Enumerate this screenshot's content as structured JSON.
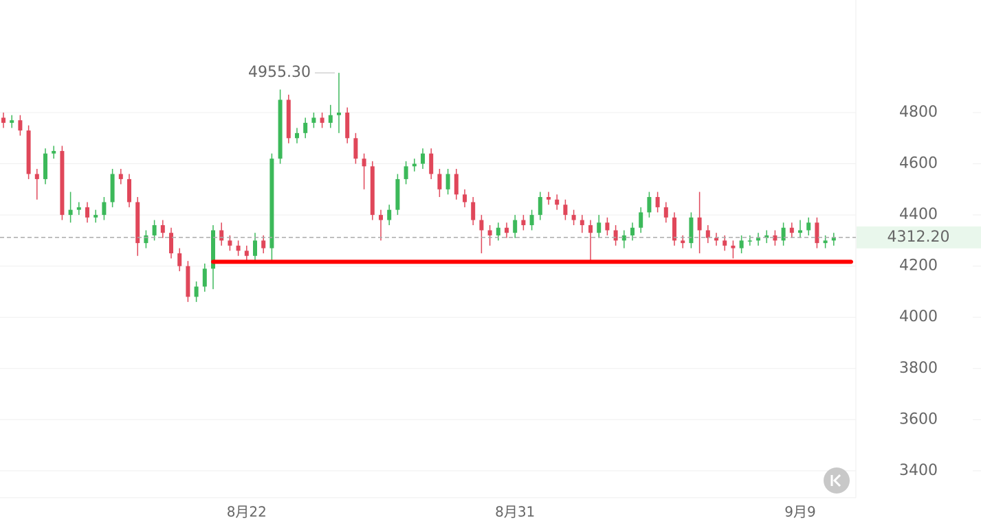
{
  "chart_data": {
    "type": "candlestick",
    "ylim": [
      3295,
      5240
    ],
    "yticks": [
      3400,
      3600,
      3800,
      4000,
      4200,
      4400,
      4600,
      4800
    ],
    "grid": true,
    "up_color": "#3cb95a",
    "down_color": "#e0475a",
    "categories": [
      null,
      null,
      null,
      null,
      null,
      null,
      null,
      null,
      null,
      null,
      null,
      null,
      null,
      null,
      null,
      null,
      null,
      null,
      null,
      null,
      null,
      null,
      null,
      null,
      null,
      null,
      null,
      null,
      null,
      "8月22",
      null,
      null,
      null,
      null,
      null,
      null,
      null,
      null,
      null,
      null,
      null,
      null,
      null,
      null,
      null,
      null,
      null,
      null,
      null,
      null,
      null,
      null,
      null,
      null,
      null,
      null,
      null,
      null,
      null,
      null,
      null,
      "8月31",
      null,
      null,
      null,
      null,
      null,
      null,
      null,
      null,
      null,
      null,
      null,
      null,
      null,
      null,
      null,
      null,
      null,
      null,
      null,
      null,
      null,
      null,
      null,
      null,
      null,
      null,
      null,
      null,
      null,
      null,
      null,
      null,
      null,
      "9月9",
      null,
      null,
      null,
      null
    ],
    "open": [
      4780,
      4760,
      4770,
      4730,
      4560,
      4540,
      4640,
      4650,
      4400,
      4420,
      4430,
      4390,
      4400,
      4450,
      4560,
      4540,
      4450,
      4290,
      4320,
      4360,
      4330,
      4250,
      4200,
      4080,
      4120,
      4190,
      4340,
      4300,
      4280,
      4260,
      4240,
      4300,
      4270,
      4620,
      4850,
      4700,
      4720,
      4760,
      4780,
      4760,
      4790,
      4800,
      4700,
      4620,
      4590,
      4400,
      4380,
      4420,
      4540,
      4590,
      4600,
      4640,
      4560,
      4500,
      4560,
      4480,
      4450,
      4380,
      4340,
      4320,
      4350,
      4330,
      4380,
      4360,
      4400,
      4470,
      4460,
      4440,
      4400,
      4380,
      4360,
      4330,
      4370,
      4340,
      4300,
      4320,
      4350,
      4410,
      4470,
      4430,
      4390,
      4300,
      4290,
      4390,
      4340,
      4310,
      4300,
      4280,
      4270,
      4300,
      4300,
      4310,
      4320,
      4300,
      4350,
      4330,
      4340,
      4370,
      4290,
      4300
    ],
    "high": [
      4800,
      4790,
      4790,
      4750,
      4580,
      4660,
      4670,
      4670,
      4490,
      4450,
      4450,
      4420,
      4470,
      4580,
      4580,
      4560,
      4470,
      4340,
      4380,
      4380,
      4350,
      4270,
      4220,
      4140,
      4210,
      4360,
      4370,
      4320,
      4300,
      4280,
      4330,
      4320,
      4640,
      4890,
      4870,
      4740,
      4780,
      4800,
      4800,
      4830,
      4955.3,
      4820,
      4720,
      4640,
      4610,
      4420,
      4440,
      4560,
      4610,
      4620,
      4660,
      4660,
      4580,
      4580,
      4580,
      4500,
      4470,
      4400,
      4360,
      4370,
      4370,
      4400,
      4400,
      4420,
      4490,
      4490,
      4480,
      4460,
      4420,
      4400,
      4380,
      4400,
      4390,
      4360,
      4340,
      4370,
      4430,
      4490,
      4490,
      4450,
      4410,
      4320,
      4410,
      4490,
      4360,
      4330,
      4320,
      4300,
      4320,
      4320,
      4330,
      4340,
      4340,
      4370,
      4370,
      4380,
      4390,
      4390,
      4320,
      4330
    ],
    "low": [
      4740,
      4740,
      4710,
      4540,
      4460,
      4520,
      4620,
      4380,
      4370,
      4400,
      4370,
      4370,
      4380,
      4430,
      4520,
      4430,
      4240,
      4270,
      4300,
      4310,
      4230,
      4180,
      4060,
      4060,
      4100,
      4110,
      4280,
      4260,
      4240,
      4220,
      4220,
      4250,
      4220,
      4600,
      4680,
      4680,
      4700,
      4740,
      4740,
      4740,
      4720,
      4680,
      4600,
      4500,
      4380,
      4300,
      4360,
      4400,
      4520,
      4570,
      4580,
      4540,
      4470,
      4480,
      4460,
      4430,
      4360,
      4250,
      4280,
      4300,
      4310,
      4310,
      4340,
      4340,
      4380,
      4440,
      4420,
      4380,
      4360,
      4330,
      4220,
      4310,
      4320,
      4280,
      4270,
      4300,
      4330,
      4390,
      4410,
      4370,
      4280,
      4270,
      4270,
      4250,
      4290,
      4280,
      4260,
      4230,
      4250,
      4280,
      4280,
      4290,
      4280,
      4280,
      4310,
      4310,
      4320,
      4270,
      4270,
      4280
    ],
    "close": [
      4760,
      4770,
      4730,
      4560,
      4540,
      4640,
      4650,
      4400,
      4420,
      4430,
      4390,
      4400,
      4450,
      4560,
      4540,
      4450,
      4290,
      4320,
      4360,
      4330,
      4250,
      4200,
      4080,
      4120,
      4190,
      4340,
      4300,
      4280,
      4260,
      4240,
      4300,
      4270,
      4620,
      4850,
      4700,
      4720,
      4760,
      4780,
      4760,
      4790,
      4800,
      4700,
      4620,
      4590,
      4400,
      4380,
      4420,
      4540,
      4590,
      4600,
      4640,
      4560,
      4500,
      4560,
      4480,
      4450,
      4380,
      4340,
      4320,
      4350,
      4330,
      4380,
      4360,
      4400,
      4470,
      4460,
      4440,
      4400,
      4380,
      4360,
      4330,
      4370,
      4340,
      4300,
      4320,
      4350,
      4410,
      4470,
      4430,
      4390,
      4300,
      4290,
      4390,
      4340,
      4310,
      4300,
      4280,
      4270,
      4300,
      4300,
      4310,
      4320,
      4300,
      4350,
      4330,
      4340,
      4370,
      4290,
      4300,
      4312.2
    ],
    "max_label": {
      "value": 4955.3,
      "label": "4955.30"
    },
    "last_price": {
      "value": 4312.2,
      "label": "4312.20"
    },
    "support_line": {
      "value": 4217,
      "from_index": 25,
      "color": "#ff0000"
    }
  }
}
